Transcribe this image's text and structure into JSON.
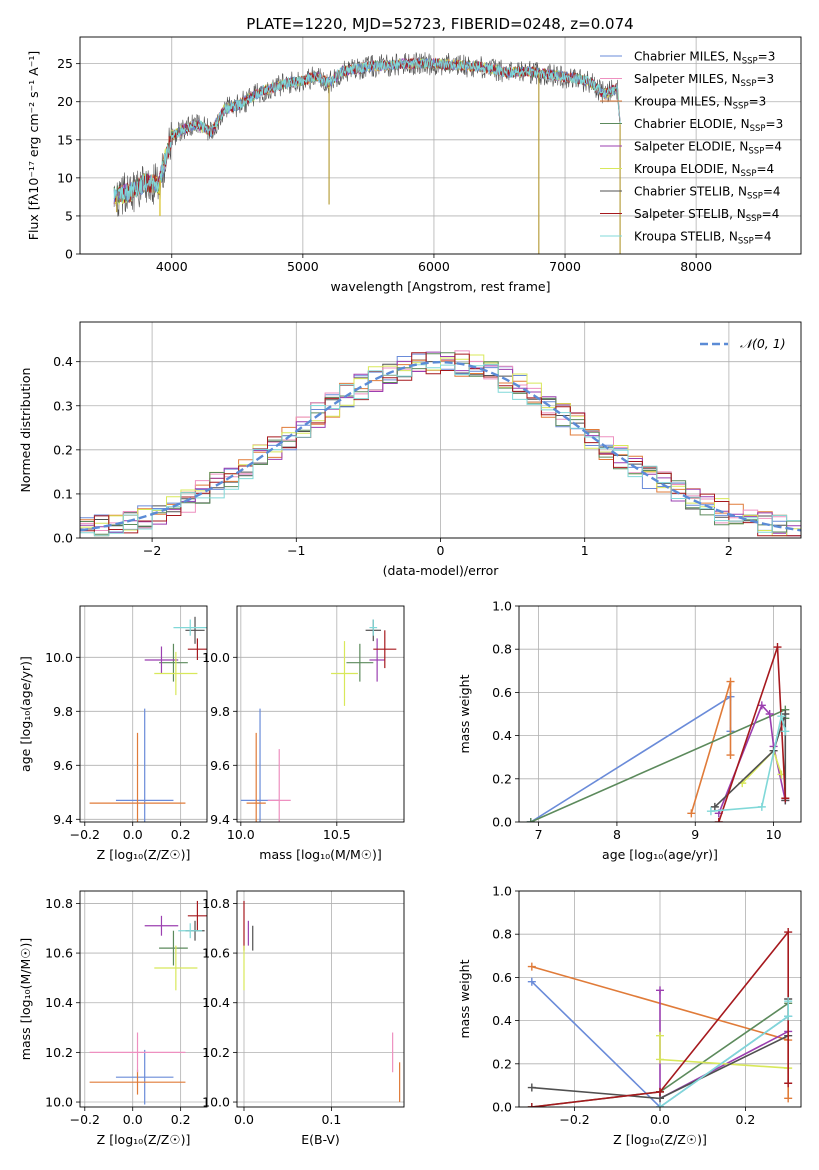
{
  "figure": {
    "title": "PLATE=1220, MJD=52723, FIBERID=0248, z=0.074",
    "fit_colors": [
      "#6a8bd9",
      "#e07b39",
      "#5c8a5c",
      "#ee90c0",
      "#9b3fb0",
      "#d8e85a",
      "#505050",
      "#a6191e",
      "#80d8d8"
    ]
  },
  "chart_data": [
    {
      "id": "spectrum",
      "type": "line",
      "xlabel": "wavelength [Angstrom, rest frame]",
      "ylabel": "Flux [f",
      "ylabel_html": "Flux [fλ10⁻¹⁷ erg cm⁻² s⁻¹ A⁻¹]",
      "xlim": [
        3300,
        8800
      ],
      "ylim": [
        0,
        28.5
      ],
      "xticks": [
        4000,
        5000,
        6000,
        7000,
        8000
      ],
      "yticks": [
        0,
        5,
        10,
        15,
        20,
        25
      ],
      "continuum": [
        [
          3560,
          7.5
        ],
        [
          3700,
          8.2
        ],
        [
          3800,
          9.5
        ],
        [
          3900,
          9.0
        ],
        [
          3950,
          12.5
        ],
        [
          4000,
          15.5
        ],
        [
          4100,
          16.5
        ],
        [
          4200,
          17.0
        ],
        [
          4300,
          16.0
        ],
        [
          4400,
          19.0
        ],
        [
          4500,
          19.5
        ],
        [
          4600,
          20.5
        ],
        [
          4700,
          21.5
        ],
        [
          4800,
          22.0
        ],
        [
          4900,
          22.5
        ],
        [
          5000,
          22.8
        ],
        [
          5100,
          23.3
        ],
        [
          5200,
          22.5
        ],
        [
          5300,
          24.0
        ],
        [
          5500,
          24.6
        ],
        [
          5800,
          25.0
        ],
        [
          6000,
          25.0
        ],
        [
          6200,
          24.8
        ],
        [
          6400,
          24.5
        ],
        [
          6560,
          23.8
        ],
        [
          6700,
          24.0
        ],
        [
          6900,
          23.5
        ],
        [
          7100,
          23.0
        ],
        [
          7200,
          22.5
        ],
        [
          7300,
          21.0
        ],
        [
          7400,
          21.8
        ],
        [
          7420,
          17.0
        ]
      ],
      "legend": [
        {
          "label": "Chabrier MILES, N",
          "suffix": "=3",
          "color": "#6a8bd9"
        },
        {
          "label": "Salpeter MILES, N",
          "suffix": "=3",
          "color": "#ee90c0"
        },
        {
          "label": "Kroupa MILES, N",
          "suffix": "=3",
          "color": "#e07b39"
        },
        {
          "label": "Chabrier ELODIE, N",
          "suffix": "=3",
          "color": "#5c8a5c"
        },
        {
          "label": "Salpeter ELODIE, N",
          "suffix": "=4",
          "color": "#9b3fb0"
        },
        {
          "label": "Kroupa ELODIE, N",
          "suffix": "=4",
          "color": "#d8e85a"
        },
        {
          "label": "Chabrier STELIB, N",
          "suffix": "=4",
          "color": "#505050"
        },
        {
          "label": "Salpeter STELIB, N",
          "suffix": "=4",
          "color": "#a6191e"
        },
        {
          "label": "Kroupa STELIB, N",
          "suffix": "=4",
          "color": "#80d8d8"
        }
      ],
      "subscript": "SSP"
    },
    {
      "id": "residuals",
      "type": "histogram",
      "xlabel": "(data-model)/error",
      "ylabel": "Normed distribution",
      "xlim": [
        -2.5,
        2.5
      ],
      "ylim": [
        0,
        0.49
      ],
      "xticks": [
        -2,
        -1,
        0,
        1,
        2
      ],
      "yticks": [
        0.0,
        0.1,
        0.2,
        0.3,
        0.4
      ],
      "bin_width": 0.1,
      "gaussian_label": "𝒩(0, 1)",
      "gaussian_color": "#5b8bd6"
    },
    {
      "id": "age-vs-z",
      "type": "errorbar",
      "xlabel": "Z [log₁₀(Z/Z☉)]",
      "ylabel": "age  [log₁₀(age/yr)]",
      "xlim": [
        -0.22,
        0.31
      ],
      "ylim": [
        9.39,
        10.19
      ],
      "xticks": [
        -0.2,
        0.0,
        0.2
      ],
      "yticks": [
        9.4,
        9.6,
        9.8,
        10.0
      ],
      "points": [
        {
          "x": 0.05,
          "xerr": 0.12,
          "y": 9.47,
          "yerr": 0.34,
          "c": 0
        },
        {
          "x": 0.02,
          "xerr": 0.2,
          "y": 9.46,
          "yerr": 0.26,
          "c": 1
        },
        {
          "x": 0.17,
          "xerr": 0.06,
          "y": 9.98,
          "yerr": 0.07,
          "c": 2
        },
        {
          "x": 0.12,
          "xerr": 0.07,
          "y": 9.99,
          "yerr": 0.05,
          "c": 4
        },
        {
          "x": 0.18,
          "xerr": 0.09,
          "y": 9.94,
          "yerr": 0.08,
          "c": 5
        },
        {
          "x": 0.26,
          "xerr": 0.04,
          "y": 10.1,
          "yerr": 0.05,
          "c": 6
        },
        {
          "x": 0.27,
          "xerr": 0.04,
          "y": 10.03,
          "yerr": 0.04,
          "c": 7
        },
        {
          "x": 0.24,
          "xerr": 0.07,
          "y": 10.11,
          "yerr": 0.03,
          "c": 8
        }
      ]
    },
    {
      "id": "age-vs-mass",
      "type": "errorbar",
      "xlabel": "mass [log₁₀(M/M☉)]",
      "ylabel": "",
      "xlim": [
        9.98,
        10.85
      ],
      "ylim": [
        9.39,
        10.19
      ],
      "xticks": [
        10.0,
        10.5
      ],
      "yticks": [
        9.4,
        9.6,
        9.8,
        10.0
      ],
      "points": [
        {
          "x": 10.1,
          "xerr": 0.1,
          "y": 9.47,
          "yerr": 0.34,
          "c": 0
        },
        {
          "x": 10.08,
          "xerr": 0.05,
          "y": 9.46,
          "yerr": 0.26,
          "c": 1
        },
        {
          "x": 10.2,
          "xerr": 0.06,
          "y": 9.47,
          "yerr": 0.19,
          "c": 3
        },
        {
          "x": 10.62,
          "xerr": 0.07,
          "y": 9.98,
          "yerr": 0.07,
          "c": 2
        },
        {
          "x": 10.71,
          "xerr": 0.04,
          "y": 9.99,
          "yerr": 0.08,
          "c": 4
        },
        {
          "x": 10.54,
          "xerr": 0.07,
          "y": 9.94,
          "yerr": 0.12,
          "c": 5
        },
        {
          "x": 10.69,
          "xerr": 0.04,
          "y": 10.1,
          "yerr": 0.04,
          "c": 6
        },
        {
          "x": 10.75,
          "xerr": 0.06,
          "y": 10.03,
          "yerr": 0.07,
          "c": 7
        },
        {
          "x": 10.69,
          "xerr": 0.02,
          "y": 10.11,
          "yerr": 0.03,
          "c": 8
        }
      ]
    },
    {
      "id": "weight-vs-age",
      "type": "line",
      "xlabel": "age  [log₁₀(age/yr)]",
      "ylabel": "mass weight",
      "xlim": [
        6.75,
        10.35
      ],
      "ylim": [
        0,
        1.0
      ],
      "xticks": [
        7,
        8,
        9,
        10
      ],
      "yticks": [
        0.0,
        0.2,
        0.4,
        0.6,
        0.8,
        1.0
      ],
      "series": [
        {
          "c": 0,
          "pts": [
            [
              6.9,
              0.0
            ],
            [
              9.45,
              0.58
            ],
            [
              9.45,
              0.42
            ]
          ]
        },
        {
          "c": 1,
          "pts": [
            [
              8.95,
              0.04
            ],
            [
              9.45,
              0.65
            ],
            [
              9.45,
              0.31
            ]
          ]
        },
        {
          "c": 2,
          "pts": [
            [
              6.9,
              0.0
            ],
            [
              10.15,
              0.52
            ],
            [
              10.15,
              0.48
            ]
          ]
        },
        {
          "c": 4,
          "pts": [
            [
              9.3,
              0.04
            ],
            [
              9.85,
              0.54
            ],
            [
              9.95,
              0.5
            ],
            [
              10.0,
              0.35
            ],
            [
              10.15,
              0.1
            ]
          ]
        },
        {
          "c": 5,
          "pts": [
            [
              9.6,
              0.18
            ],
            [
              10.0,
              0.33
            ],
            [
              10.1,
              0.22
            ]
          ]
        },
        {
          "c": 6,
          "pts": [
            [
              9.25,
              0.07
            ],
            [
              10.0,
              0.33
            ],
            [
              10.15,
              0.5
            ],
            [
              10.15,
              0.1
            ]
          ]
        },
        {
          "c": 7,
          "pts": [
            [
              9.3,
              0.0
            ],
            [
              10.05,
              0.81
            ],
            [
              10.15,
              0.11
            ]
          ]
        },
        {
          "c": 8,
          "pts": [
            [
              9.2,
              0.05
            ],
            [
              9.85,
              0.07
            ],
            [
              10.1,
              0.49
            ],
            [
              10.15,
              0.42
            ]
          ]
        }
      ]
    },
    {
      "id": "mass-vs-z",
      "type": "errorbar",
      "xlabel": "Z [log₁₀(Z/Z☉)]",
      "ylabel": "mass [log₁₀(M/M☉)]",
      "xlim": [
        -0.22,
        0.31
      ],
      "ylim": [
        9.98,
        10.85
      ],
      "xticks": [
        -0.2,
        0.0,
        0.2
      ],
      "yticks": [
        10.0,
        10.2,
        10.4,
        10.6,
        10.8
      ],
      "points": [
        {
          "x": 0.05,
          "xerr": 0.12,
          "y": 10.1,
          "yerr": 0.11,
          "c": 0
        },
        {
          "x": 0.02,
          "xerr": 0.2,
          "y": 10.08,
          "yerr": 0.05,
          "c": 1
        },
        {
          "x": 0.02,
          "xerr": 0.2,
          "y": 10.2,
          "yerr": 0.08,
          "c": 3
        },
        {
          "x": 0.17,
          "xerr": 0.06,
          "y": 10.62,
          "yerr": 0.07,
          "c": 2
        },
        {
          "x": 0.12,
          "xerr": 0.07,
          "y": 10.71,
          "yerr": 0.04,
          "c": 4
        },
        {
          "x": 0.18,
          "xerr": 0.09,
          "y": 10.54,
          "yerr": 0.09,
          "c": 5
        },
        {
          "x": 0.26,
          "xerr": 0.04,
          "y": 10.69,
          "yerr": 0.04,
          "c": 6
        },
        {
          "x": 0.27,
          "xerr": 0.04,
          "y": 10.75,
          "yerr": 0.06,
          "c": 7
        },
        {
          "x": 0.24,
          "xerr": 0.05,
          "y": 10.69,
          "yerr": 0.03,
          "c": 8
        }
      ]
    },
    {
      "id": "mass-vs-ebv",
      "type": "errorbar",
      "xlabel": "E(B-V)",
      "ylabel": "",
      "xlim": [
        -0.008,
        0.183
      ],
      "ylim": [
        9.98,
        10.85
      ],
      "xticks": [
        0.0,
        0.1
      ],
      "yticks": [
        10.0,
        10.2,
        10.4,
        10.6,
        10.8
      ],
      "points": [
        {
          "x": 0.0,
          "y": 10.71,
          "yerr": 0.1,
          "c": 7
        },
        {
          "x": 0.0,
          "y": 10.54,
          "yerr": 0.09,
          "c": 5
        },
        {
          "x": 0.005,
          "y": 10.68,
          "yerr": 0.05,
          "c": 4
        },
        {
          "x": 0.01,
          "y": 10.66,
          "yerr": 0.05,
          "c": 6
        },
        {
          "x": 0.17,
          "y": 10.2,
          "yerr": 0.08,
          "c": 3
        },
        {
          "x": 0.178,
          "y": 10.08,
          "yerr": 0.08,
          "c": 1
        }
      ]
    },
    {
      "id": "weight-vs-z",
      "type": "line",
      "xlabel": "Z [log₁₀(Z/Z☉)]",
      "ylabel": "mass weight",
      "xlim": [
        -0.33,
        0.33
      ],
      "ylim": [
        0,
        1.0
      ],
      "xticks": [
        -0.2,
        0.0,
        0.2
      ],
      "yticks": [
        0.0,
        0.2,
        0.4,
        0.6,
        0.8,
        1.0
      ],
      "series": [
        {
          "c": 0,
          "pts": [
            [
              -0.3,
              0.58
            ],
            [
              0.0,
              0.0
            ],
            [
              0.3,
              0.42
            ]
          ]
        },
        {
          "c": 1,
          "pts": [
            [
              -0.3,
              0.65
            ],
            [
              0.3,
              0.31
            ],
            [
              0.3,
              0.04
            ]
          ]
        },
        {
          "c": 2,
          "pts": [
            [
              -0.3,
              0.0
            ],
            [
              0.0,
              0.07
            ],
            [
              0.3,
              0.48
            ]
          ]
        },
        {
          "c": 4,
          "pts": [
            [
              0.0,
              0.54
            ],
            [
              0.0,
              0.04
            ],
            [
              0.3,
              0.35
            ]
          ]
        },
        {
          "c": 5,
          "pts": [
            [
              0.0,
              0.33
            ],
            [
              0.0,
              0.22
            ],
            [
              0.3,
              0.18
            ]
          ]
        },
        {
          "c": 6,
          "pts": [
            [
              -0.3,
              0.09
            ],
            [
              0.0,
              0.04
            ],
            [
              0.3,
              0.33
            ],
            [
              0.3,
              0.5
            ]
          ]
        },
        {
          "c": 7,
          "pts": [
            [
              -0.3,
              0.0
            ],
            [
              0.0,
              0.07
            ],
            [
              0.3,
              0.81
            ],
            [
              0.3,
              0.11
            ]
          ]
        },
        {
          "c": 8,
          "pts": [
            [
              0.0,
              0.0
            ],
            [
              0.3,
              0.42
            ],
            [
              0.3,
              0.49
            ]
          ]
        }
      ]
    }
  ]
}
